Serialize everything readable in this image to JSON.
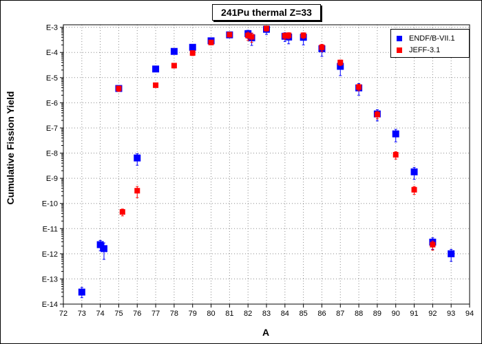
{
  "chart_data": {
    "type": "scatter",
    "title": "241Pu thermal Z=33",
    "xlabel": "A",
    "ylabel": "Cumulative Fission Yield",
    "xlim": [
      72,
      94
    ],
    "ylim_log10": [
      -14,
      -2.9
    ],
    "yscale": "log",
    "grid": true,
    "legend_position": "top-right",
    "x_ticks": [
      "72",
      "73",
      "74",
      "75",
      "76",
      "77",
      "78",
      "79",
      "80",
      "81",
      "82",
      "83",
      "84",
      "85",
      "86",
      "87",
      "88",
      "89",
      "90",
      "91",
      "92",
      "93",
      "94"
    ],
    "y_ticks": [
      "E-3",
      "E-4",
      "E-5",
      "E-6",
      "E-7",
      "E-8",
      "E-9",
      "E-10",
      "E-11",
      "E-12",
      "E-13",
      "E-14"
    ],
    "series": [
      {
        "name": "ENDF/B-VII.1",
        "color": "#0000ff",
        "marker": "square",
        "points": [
          {
            "x": 73.0,
            "y": 3e-14,
            "err_low": 1.8e-14,
            "err_high": 4.6e-14
          },
          {
            "x": 74.0,
            "y": 2.3e-12,
            "err_low": 1.3e-12,
            "err_high": 3.4e-12
          },
          {
            "x": 74.2,
            "y": 1.6e-12,
            "err_low": 6e-13,
            "err_high": 2.7e-12
          },
          {
            "x": 75.0,
            "y": 3.7e-06,
            "err_low": 3e-06,
            "err_high": 4.4e-06
          },
          {
            "x": 76.0,
            "y": 6.4e-09,
            "err_low": 3.3e-09,
            "err_high": 9.5e-09
          },
          {
            "x": 77.0,
            "y": 2.2e-05,
            "err_low": 1.8e-05,
            "err_high": 2.6e-05
          },
          {
            "x": 78.0,
            "y": 0.00011,
            "err_low": 9e-05,
            "err_high": 0.00013
          },
          {
            "x": 79.0,
            "y": 0.00016,
            "err_low": 0.00013,
            "err_high": 0.00019
          },
          {
            "x": 80.0,
            "y": 0.00029,
            "err_low": 0.00024,
            "err_high": 0.00034
          },
          {
            "x": 81.0,
            "y": 0.0005,
            "err_low": 0.0004,
            "err_high": 0.0006
          },
          {
            "x": 82.0,
            "y": 0.00056,
            "err_low": 0.00036,
            "err_high": 0.00076
          },
          {
            "x": 82.2,
            "y": 0.00038,
            "err_low": 0.00019,
            "err_high": 0.00057
          },
          {
            "x": 83.0,
            "y": 0.00083,
            "err_low": 0.00052,
            "err_high": 0.0011
          },
          {
            "x": 84.0,
            "y": 0.00044,
            "err_low": 0.00027,
            "err_high": 0.00061
          },
          {
            "x": 84.2,
            "y": 0.00041,
            "err_low": 0.00022,
            "err_high": 0.0006
          },
          {
            "x": 85.0,
            "y": 0.0004,
            "err_low": 0.0002,
            "err_high": 0.0006
          },
          {
            "x": 86.0,
            "y": 0.00014,
            "err_low": 7e-05,
            "err_high": 0.00021
          },
          {
            "x": 87.0,
            "y": 2.8e-05,
            "err_low": 1.2e-05,
            "err_high": 4.4e-05
          },
          {
            "x": 88.0,
            "y": 3.9e-06,
            "err_low": 2e-06,
            "err_high": 5.8e-06
          },
          {
            "x": 89.0,
            "y": 3.6e-07,
            "err_low": 1.9e-07,
            "err_high": 5.3e-07
          },
          {
            "x": 90.0,
            "y": 5.8e-08,
            "err_low": 2.8e-08,
            "err_high": 8.8e-08
          },
          {
            "x": 91.0,
            "y": 1.8e-09,
            "err_low": 9e-10,
            "err_high": 2.7e-09
          },
          {
            "x": 92.0,
            "y": 2.9e-12,
            "err_low": 1.5e-12,
            "err_high": 4.3e-12
          },
          {
            "x": 93.0,
            "y": 1e-12,
            "err_low": 5e-13,
            "err_high": 1.5e-12
          }
        ]
      },
      {
        "name": "JEFF-3.1",
        "color": "#ff0000",
        "marker": "square",
        "points": [
          {
            "x": 75.0,
            "y": 3.7e-06,
            "err_low": 2.8e-06,
            "err_high": 4.6e-06
          },
          {
            "x": 75.2,
            "y": 4.6e-11,
            "err_low": 3.2e-11,
            "err_high": 6e-11
          },
          {
            "x": 76.0,
            "y": 3.2e-10,
            "err_low": 1.7e-10,
            "err_high": 4.7e-10
          },
          {
            "x": 77.0,
            "y": 5e-06,
            "err_low": 4.2e-06,
            "err_high": 5.8e-06
          },
          {
            "x": 78.0,
            "y": 3e-05,
            "err_low": 2.4e-05,
            "err_high": 3.6e-05
          },
          {
            "x": 79.0,
            "y": 9.5e-05,
            "err_low": 7.5e-05,
            "err_high": 0.000115
          },
          {
            "x": 80.0,
            "y": 0.00025,
            "err_low": 0.0002,
            "err_high": 0.0003
          },
          {
            "x": 81.0,
            "y": 0.00051,
            "err_low": 0.00041,
            "err_high": 0.00061
          },
          {
            "x": 82.0,
            "y": 0.00047,
            "err_low": 0.0003,
            "err_high": 0.00064
          },
          {
            "x": 82.2,
            "y": 0.00042,
            "err_low": 0.00025,
            "err_high": 0.00059
          },
          {
            "x": 83.0,
            "y": 0.0009,
            "err_low": 0.0007,
            "err_high": 0.0011
          },
          {
            "x": 84.0,
            "y": 0.00046,
            "err_low": 0.00033,
            "err_high": 0.00059
          },
          {
            "x": 84.2,
            "y": 0.00048,
            "err_low": 0.00035,
            "err_high": 0.00061
          },
          {
            "x": 85.0,
            "y": 0.00048,
            "err_low": 0.00036,
            "err_high": 0.0006
          },
          {
            "x": 86.0,
            "y": 0.00016,
            "err_low": 0.00011,
            "err_high": 0.00021
          },
          {
            "x": 87.0,
            "y": 4e-05,
            "err_low": 3e-05,
            "err_high": 5e-05
          },
          {
            "x": 88.0,
            "y": 4.2e-06,
            "err_low": 3e-06,
            "err_high": 5.4e-06
          },
          {
            "x": 89.0,
            "y": 3.4e-07,
            "err_low": 2.3e-07,
            "err_high": 4.5e-07
          },
          {
            "x": 90.0,
            "y": 8.6e-09,
            "err_low": 5.8e-09,
            "err_high": 1.14e-08
          },
          {
            "x": 91.0,
            "y": 3.5e-10,
            "err_low": 2.3e-10,
            "err_high": 4.7e-10
          },
          {
            "x": 92.0,
            "y": 2.3e-12,
            "err_low": 1.4e-12,
            "err_high": 3.2e-12
          }
        ]
      }
    ]
  }
}
